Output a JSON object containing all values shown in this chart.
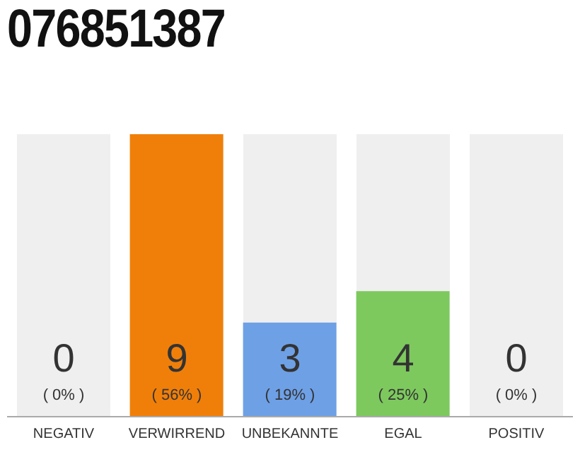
{
  "chart_data": {
    "type": "bar",
    "title": "076851387",
    "categories": [
      "NEGATIV",
      "VERWIRREND",
      "UNBEKANNTE",
      "EGAL",
      "POSITIV"
    ],
    "values": [
      0,
      9,
      3,
      4,
      0
    ],
    "colors": [
      "#e05a4f",
      "#f07f09",
      "#6ea0e6",
      "#7dc95e",
      "#4caf50"
    ],
    "data_labels": true,
    "annotations": [
      "( 0% )",
      "( 56% )",
      "( 19% )",
      "( 25% )",
      "( 0% )"
    ]
  }
}
